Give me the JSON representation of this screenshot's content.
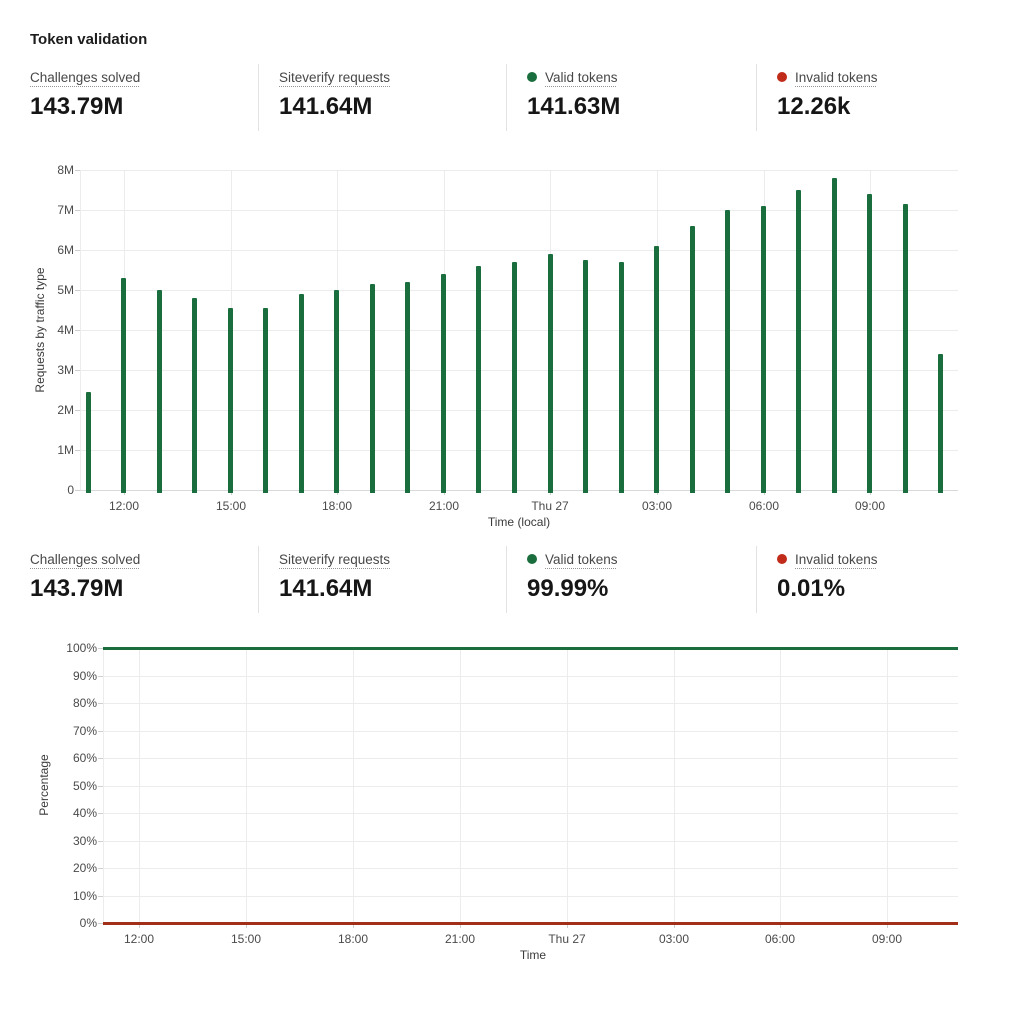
{
  "page": {
    "title": "Token validation"
  },
  "stats_top": [
    {
      "label": "Challenges solved",
      "value": "143.79M"
    },
    {
      "label": "Siteverify requests",
      "value": "141.64M"
    },
    {
      "label": "Valid tokens",
      "value": "141.63M",
      "dot_color": "#1a6d3c"
    },
    {
      "label": "Invalid tokens",
      "value": "12.26k",
      "dot_color": "#c02b1a"
    }
  ],
  "stats_bottom": [
    {
      "label": "Challenges solved",
      "value": "143.79M"
    },
    {
      "label": "Siteverify requests",
      "value": "141.64M"
    },
    {
      "label": "Valid tokens",
      "value": "99.99%",
      "dot_color": "#1a6d3c"
    },
    {
      "label": "Invalid tokens",
      "value": "0.01%",
      "dot_color": "#c02b1a"
    }
  ],
  "chart_data": [
    {
      "type": "bar",
      "title": "",
      "ylabel": "Requests by traffic type",
      "xlabel": "Time (local)",
      "ylim": [
        0,
        8000000
      ],
      "yticks": [
        "0",
        "1M",
        "2M",
        "3M",
        "4M",
        "5M",
        "6M",
        "7M",
        "8M"
      ],
      "xticks": [
        "12:00",
        "15:00",
        "18:00",
        "21:00",
        "Thu 27",
        "03:00",
        "06:00",
        "09:00"
      ],
      "grid": true,
      "legend_position": "none",
      "series_name": "Valid tokens",
      "color": "#1a6d3c",
      "x": [
        "11:00",
        "12:00",
        "13:00",
        "14:00",
        "15:00",
        "16:00",
        "17:00",
        "18:00",
        "19:00",
        "20:00",
        "21:00",
        "22:00",
        "23:00",
        "Thu 27 00:00",
        "01:00",
        "02:00",
        "03:00",
        "04:00",
        "05:00",
        "06:00",
        "07:00",
        "08:00",
        "09:00",
        "10:00",
        "11:00"
      ],
      "values": [
        2450000,
        5300000,
        5000000,
        4800000,
        4550000,
        4550000,
        4900000,
        5000000,
        5150000,
        5200000,
        5400000,
        5600000,
        5700000,
        5900000,
        5750000,
        5700000,
        6100000,
        6600000,
        7000000,
        7100000,
        7500000,
        7800000,
        7400000,
        7150000,
        3400000
      ]
    },
    {
      "type": "line",
      "title": "",
      "ylabel": "Percentage",
      "xlabel": "Time",
      "ylim": [
        0,
        100
      ],
      "yticks": [
        "0%",
        "10%",
        "20%",
        "30%",
        "40%",
        "50%",
        "60%",
        "70%",
        "80%",
        "90%",
        "100%"
      ],
      "xticks": [
        "12:00",
        "15:00",
        "18:00",
        "21:00",
        "Thu 27",
        "03:00",
        "06:00",
        "09:00"
      ],
      "grid": true,
      "legend_position": "none",
      "series": [
        {
          "name": "Valid tokens",
          "color": "#1a6d3c",
          "value_percent": 99.99
        },
        {
          "name": "Invalid tokens",
          "color": "#a32e18",
          "value_percent": 0.01
        }
      ]
    }
  ]
}
